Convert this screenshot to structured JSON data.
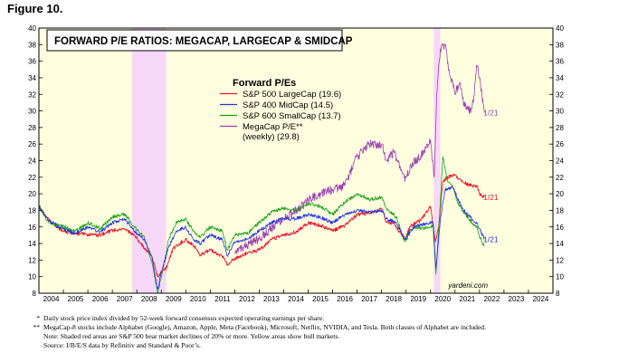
{
  "figure_label": "Figure 10.",
  "notes": [
    {
      "mark": "*",
      "text": "Daily stock price index divided by 52-week forward consensus expected operating earnings per share."
    },
    {
      "mark": "**",
      "text": "MegaCap-8 stocks include Alphabet (Google), Amazon, Apple, Meta (Facebook), Microsoft, Netflix, NVIDIA, and Tesla. Both classes of Alphabet are included."
    },
    {
      "mark": "",
      "text": "Note: Shaded red areas are S&P 500 bear market declines of 20% or more. Yellow areas show bull markets."
    },
    {
      "mark": "",
      "text": "Source: I/B/E/S data by Refinitiv and Standard & Poor’s."
    }
  ],
  "colors": {
    "plot_bg": "#ffffe0",
    "bear_shade": "#f8d8f8",
    "largecap": "#e8192c",
    "midcap": "#2233dd",
    "smallcap": "#18a018",
    "megacap": "#9b40b0"
  },
  "chart_data": {
    "type": "line",
    "title": "FORWARD P/E RATIOS: MEGACAP, LARGECAP & SMIDCAP",
    "legend_title": "Forward P/Es",
    "legend_position": "top-center",
    "watermark": "yardeni.com",
    "x_tick_labels": [
      "2004",
      "2005",
      "2006",
      "2007",
      "2008",
      "2009",
      "2010",
      "2011",
      "2012",
      "2013",
      "2014",
      "2015",
      "2016",
      "2017",
      "2018",
      "2019",
      "2020",
      "2021",
      "2022",
      "2023",
      "2024"
    ],
    "xlim": [
      2004,
      2025
    ],
    "ylim": [
      8,
      40
    ],
    "y_ticks": [
      8,
      10,
      12,
      14,
      16,
      18,
      20,
      22,
      24,
      26,
      28,
      30,
      32,
      34,
      36,
      38,
      40
    ],
    "grid": false,
    "bear_markets": [
      [
        2007.8,
        2009.2
      ],
      [
        2020.13,
        2020.4
      ]
    ],
    "end_labels": [
      {
        "text": "1/21",
        "y": 29.8,
        "color_key": "megacap"
      },
      {
        "text": "1/21",
        "y": 19.6,
        "color_key": "largecap"
      },
      {
        "text": "1/21",
        "y": 14.5,
        "color_key": "midcap"
      }
    ],
    "series": [
      {
        "name": "S&P 500 LargeCap (19.6)",
        "color_key": "largecap",
        "width": 0.9,
        "x": [
          2004.0,
          2004.3,
          2004.7,
          2005.0,
          2005.5,
          2006.0,
          2006.5,
          2007.0,
          2007.5,
          2007.9,
          2008.3,
          2008.6,
          2008.85,
          2009.0,
          2009.2,
          2009.5,
          2010.0,
          2010.4,
          2010.6,
          2011.0,
          2011.5,
          2011.7,
          2012.0,
          2012.5,
          2013.0,
          2013.5,
          2014.0,
          2014.5,
          2015.0,
          2015.5,
          2016.0,
          2016.5,
          2017.0,
          2017.5,
          2018.0,
          2018.2,
          2018.5,
          2018.95,
          2019.2,
          2019.6,
          2020.0,
          2020.2,
          2020.35,
          2020.5,
          2020.7,
          2021.0,
          2021.3,
          2021.6,
          2021.9,
          2022.0,
          2022.2
        ],
        "y": [
          18.6,
          17.2,
          16.0,
          15.5,
          15.2,
          15.1,
          15.0,
          15.6,
          15.7,
          15.0,
          13.5,
          12.5,
          10.0,
          10.5,
          11.0,
          13.5,
          14.5,
          13.5,
          12.6,
          13.2,
          12.5,
          11.5,
          12.2,
          12.8,
          13.2,
          14.5,
          15.0,
          15.4,
          16.5,
          16.2,
          15.5,
          16.2,
          17.5,
          17.6,
          18.2,
          16.6,
          16.4,
          14.5,
          16.2,
          16.8,
          18.5,
          14.2,
          16.5,
          21.5,
          22.0,
          22.3,
          21.5,
          21.0,
          21.0,
          20.0,
          19.6
        ]
      },
      {
        "name": "S&P 400 MidCap (14.5)",
        "color_key": "midcap",
        "width": 0.8,
        "x": [
          2004.0,
          2004.4,
          2004.8,
          2005.5,
          2006.0,
          2006.5,
          2007.0,
          2007.5,
          2007.9,
          2008.3,
          2008.6,
          2008.85,
          2009.0,
          2009.3,
          2009.6,
          2010.0,
          2010.3,
          2010.6,
          2011.0,
          2011.5,
          2011.7,
          2012.0,
          2012.5,
          2013.0,
          2013.5,
          2014.0,
          2014.5,
          2015.0,
          2015.5,
          2016.0,
          2016.5,
          2017.0,
          2017.5,
          2018.0,
          2018.2,
          2018.6,
          2018.95,
          2019.3,
          2019.8,
          2020.1,
          2020.22,
          2020.4,
          2020.6,
          2020.9,
          2021.1,
          2021.3,
          2021.6,
          2021.9,
          2022.0,
          2022.2
        ],
        "y": [
          18.4,
          16.8,
          16.0,
          15.2,
          16.0,
          15.4,
          16.5,
          17.0,
          15.5,
          14.5,
          12.5,
          8.5,
          10.5,
          13.5,
          15.5,
          16.0,
          14.5,
          14.0,
          15.0,
          14.5,
          12.5,
          14.2,
          14.5,
          15.5,
          16.5,
          17.0,
          17.0,
          17.5,
          17.2,
          16.5,
          17.5,
          18.0,
          17.8,
          18.0,
          17.0,
          16.5,
          14.5,
          16.0,
          16.4,
          16.6,
          11.0,
          17.0,
          20.5,
          20.8,
          19.5,
          18.2,
          17.2,
          16.5,
          15.8,
          14.5
        ]
      },
      {
        "name": "S&P 600 SmallCap (13.7)",
        "color_key": "smallcap",
        "width": 0.8,
        "x": [
          2004.0,
          2004.4,
          2004.8,
          2005.5,
          2006.0,
          2006.5,
          2007.0,
          2007.5,
          2007.9,
          2008.3,
          2008.6,
          2008.85,
          2009.0,
          2009.3,
          2009.6,
          2010.0,
          2010.3,
          2010.6,
          2011.0,
          2011.5,
          2011.7,
          2012.0,
          2012.5,
          2013.0,
          2013.5,
          2014.0,
          2014.5,
          2015.0,
          2015.5,
          2016.0,
          2016.5,
          2017.0,
          2017.5,
          2018.0,
          2018.2,
          2018.6,
          2018.95,
          2019.3,
          2019.8,
          2020.1,
          2020.22,
          2020.4,
          2020.5,
          2020.7,
          2020.9,
          2021.1,
          2021.3,
          2021.6,
          2021.9,
          2022.0,
          2022.2
        ],
        "y": [
          18.5,
          16.5,
          16.2,
          15.5,
          16.5,
          15.8,
          17.2,
          17.6,
          16.0,
          14.8,
          12.0,
          8.0,
          10.0,
          14.5,
          16.5,
          17.0,
          15.5,
          14.8,
          16.0,
          15.5,
          13.2,
          15.0,
          15.2,
          16.5,
          17.8,
          18.3,
          18.0,
          18.8,
          18.5,
          17.5,
          19.0,
          20.0,
          19.3,
          19.6,
          18.2,
          17.2,
          14.2,
          16.0,
          15.8,
          16.2,
          10.3,
          19.0,
          24.5,
          21.5,
          21.0,
          19.0,
          18.0,
          16.8,
          16.0,
          14.8,
          13.7
        ]
      },
      {
        "name": "MegaCap P/E** (weekly) (29.8)",
        "color_key": "megacap",
        "width": 0.8,
        "x": [
          2012.0,
          2012.5,
          2013.0,
          2013.5,
          2014.0,
          2014.5,
          2015.0,
          2015.5,
          2016.0,
          2016.5,
          2017.0,
          2017.5,
          2018.0,
          2018.2,
          2018.5,
          2018.95,
          2019.2,
          2019.6,
          2020.0,
          2020.15,
          2020.25,
          2020.4,
          2020.6,
          2020.75,
          2021.0,
          2021.2,
          2021.4,
          2021.6,
          2021.75,
          2021.9,
          2022.0,
          2022.1,
          2022.2
        ],
        "y": [
          13.0,
          13.8,
          14.6,
          15.8,
          17.0,
          18.0,
          19.2,
          20.0,
          20.5,
          21.0,
          24.5,
          26.0,
          26.0,
          24.0,
          25.0,
          21.5,
          23.5,
          24.5,
          26.5,
          22.0,
          32.0,
          37.5,
          38.0,
          35.0,
          32.0,
          33.5,
          30.5,
          30.0,
          31.0,
          35.5,
          34.0,
          32.0,
          29.8
        ]
      }
    ]
  }
}
